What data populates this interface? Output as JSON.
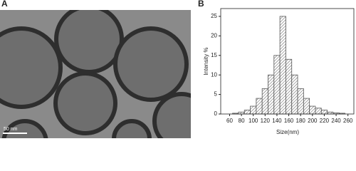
{
  "panel_a": {
    "label": "A",
    "scale_bar": "50 nm"
  },
  "chart_data": {
    "type": "histogram",
    "panel_label": "B",
    "xlabel": "Size(nm)",
    "ylabel": "Intensity %",
    "bins": [
      65,
      75,
      85,
      95,
      105,
      115,
      125,
      135,
      145,
      155,
      165,
      175,
      185,
      195,
      205,
      215,
      225,
      235,
      245,
      255
    ],
    "values": [
      0.2,
      0.5,
      1,
      2,
      4,
      6.5,
      10,
      15,
      25,
      14,
      10,
      6.5,
      4,
      2,
      1.5,
      1,
      0.5,
      0.3,
      0.2
    ],
    "color": "#555555",
    "xlim": [
      45,
      270
    ],
    "xticks": [
      60,
      80,
      100,
      120,
      140,
      160,
      180,
      200,
      220,
      240,
      260
    ],
    "ylim": [
      0,
      27
    ],
    "yticks": [
      0,
      5,
      10,
      15,
      20,
      25
    ]
  }
}
